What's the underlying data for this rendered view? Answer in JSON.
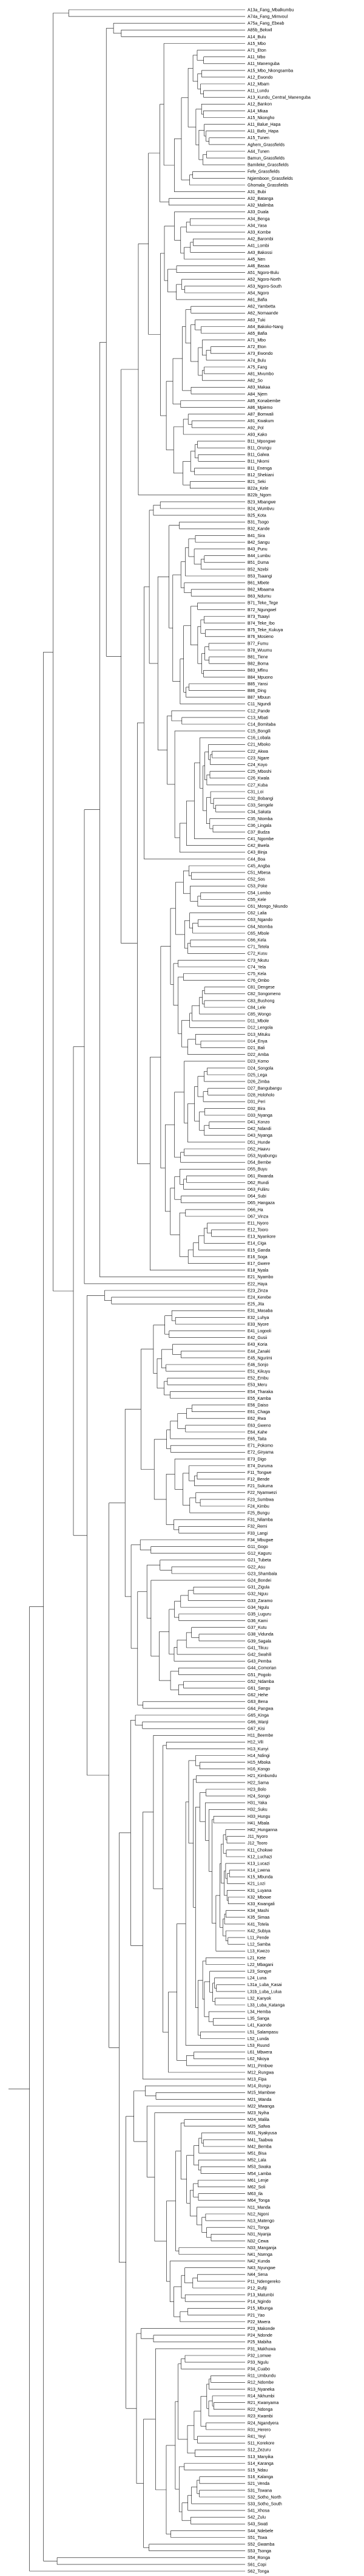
{
  "tree": {
    "tips": [
      "A13a_Fang_Mbalkumbu",
      "A74a_Fang_Mimvoul",
      "A75a_Fang_Ebeab",
      "A85b_Bekwil",
      "A14_Bulu",
      "A15_Mbo",
      "A71_Eton",
      "A11_Mbo",
      "A11_Manenguba",
      "A15_Mbo_Nkongsamba",
      "A12_Ewondo",
      "A12_Mbam",
      "A11_Lundu",
      "A13_Kundu_Central_Manenguba",
      "A12_Bankon",
      "A14_Mkaa",
      "A15_Nkongho",
      "A11_Balue_Hapa",
      "A11_Bafo_Hapa",
      "A15_Tunen",
      "Aghem_Grassfields",
      "A44_Tunen",
      "Bamun_Grassfields",
      "Bamileke_Grassfields",
      "Fefe_Grassfields",
      "Ngiemboon_Grassfields",
      "Ghomala_Grassfields",
      "A31_Bubi",
      "A32_Batanga",
      "A32_Malimba",
      "A33_Duala",
      "A34_Benga",
      "A34_Yasa",
      "A33_Kombe",
      "A42_Barombi",
      "A41_Lombi",
      "A43_Bakossi",
      "A45_Nen",
      "A46_Basaa",
      "A51_Ngoro-Bulu",
      "A52_Ngoro-North",
      "A53_Ngoro-South",
      "A54_Ngoro",
      "A61_Bafia",
      "A62_Yambetta",
      "A62_Nomaande",
      "A63_Tuki",
      "A64_Bakoko-Nang",
      "A65_Bafia",
      "A71_Mbo",
      "A72_Eton",
      "A73_Ewondo",
      "A74_Bulu",
      "A75_Fang",
      "A81_Mvumbo",
      "A82_So",
      "A83_Makaa",
      "A84_Njem",
      "A85_Konabembe",
      "A86_Mpiemo",
      "A87_Bomwali",
      "A91_Kwakum",
      "A92_Pol",
      "A93_Kako",
      "B11_Mpongwe",
      "B11_Orungu",
      "B11_Galwa",
      "B11_Nkomi",
      "B11_Enenga",
      "B12_Shekiani",
      "B21_Seki",
      "B22a_Kele",
      "B22b_Ngom",
      "B23_Mbangwe",
      "B24_Wumbvu",
      "B25_Kota",
      "B31_Tsogo",
      "B32_Kande",
      "B41_Sira",
      "B42_Sangu",
      "B43_Punu",
      "B44_Lumbu",
      "B51_Duma",
      "B52_Nzebi",
      "B53_Tsaangi",
      "B61_Mbete",
      "B62_Mbaama",
      "B63_Ndumu",
      "B71_Teke_Tege",
      "B72_Ngungwel",
      "B73_Tsaayi",
      "B74_Teke_Ibo",
      "B75_Teke_Kukuya",
      "B76_Mosieno",
      "B77_Fumu",
      "B78_Wuumu",
      "B81_Tiene",
      "B82_Boma",
      "B83_Mfinu",
      "B84_Mpuono",
      "B85_Yansi",
      "B86_Ding",
      "B87_Mbuun",
      "C11_Ngundi",
      "C12_Pande",
      "C13_Mbati",
      "C14_Bomitaba",
      "C15_Bongili",
      "C16_Lobala",
      "C21_Mboko",
      "C22_Akwa",
      "C23_Ngare",
      "C24_Koyo",
      "C25_Mboshi",
      "C26_Kwala",
      "C27_Kuba",
      "C31_Loi",
      "C32_Bobangi",
      "C33_Sengele",
      "C34_Sakata",
      "C35_Ntomba",
      "C36_Lingala",
      "C37_Budza",
      "C41_Ngombe",
      "C42_Bwela",
      "C43_Binja",
      "C44_Boa",
      "C45_Angba",
      "C51_Mbesa",
      "C52_Sos",
      "C53_Poke",
      "C54_Lombo",
      "C55_Kele",
      "C61_Mongo_Nkundo",
      "C62_Lalia",
      "C63_Ngando",
      "C64_Ntomba",
      "C65_Mbole",
      "C66_Kela",
      "C71_Tetela",
      "C72_Kusu",
      "C73_Nkutu",
      "C74_Yela",
      "C75_Kela",
      "C76_Ombo",
      "C81_Dengese",
      "C82_Songomeno",
      "C83_Bushong",
      "C84_Lele",
      "C85_Wongo",
      "D11_Mbole",
      "D12_Lengola",
      "D13_Mituku",
      "D14_Enya",
      "D21_Bali",
      "D22_Amba",
      "D23_Komo",
      "D24_Songola",
      "D25_Lega",
      "D26_Zimba",
      "D27_Bangubangu",
      "D28_Holoholo",
      "D31_Peri",
      "D32_Bira",
      "D33_Nyanga",
      "D41_Konzo",
      "D42_Ndandi",
      "D43_Nyanga",
      "D51_Hunde",
      "D52_Haavu",
      "D53_Nyabungu",
      "D54_Bembe",
      "D55_Buyu",
      "D61_Rwanda",
      "D62_Rundi",
      "D63_Fuliiru",
      "D64_Subi",
      "D65_Hangaza",
      "D66_Ha",
      "D67_Vinza",
      "E11_Nyoro",
      "E12_Tooro",
      "E13_Nyankore",
      "E14_Ciga",
      "E15_Ganda",
      "E16_Soga",
      "E17_Gwere",
      "E18_Nyala",
      "E21_Nyambo",
      "E22_Haya",
      "E23_Zinza",
      "E24_Kerebe",
      "E25_Jita",
      "E31_Masaba",
      "E32_Luhya",
      "E33_Nyore",
      "E41_Logooli",
      "E42_Gusii",
      "E43_Koria",
      "E44_Zanaki",
      "E45_Ngurimi",
      "E46_Sonjo",
      "E51_Kikuyu",
      "E52_Embu",
      "E53_Meru",
      "E54_Tharaka",
      "E55_Kamba",
      "E56_Daiso",
      "E61_Chaga",
      "E62_Rwa",
      "E63_Gweno",
      "E64_Kahe",
      "E65_Taita",
      "E71_Pokomo",
      "E72_Giryama",
      "E73_Digo",
      "E74_Duruma",
      "F11_Tongwe",
      "F12_Bende",
      "F21_Sukuma",
      "F22_Nyamwezi",
      "F23_Sumbwa",
      "F24_Kimbu",
      "F25_Bungu",
      "F31_Nilamba",
      "F32_Remi",
      "F33_Langi",
      "F34_Mbugwe",
      "G11_Gogo",
      "G12_Kaguru",
      "G21_Tubeta",
      "G22_Asu",
      "G23_Shambala",
      "G24_Bondei",
      "G31_Zigula",
      "G32_Nguu",
      "G33_Zaramo",
      "G34_Ngulu",
      "G35_Luguru",
      "G36_Kami",
      "G37_Kutu",
      "G38_Vidunda",
      "G39_Sagala",
      "G41_Tikuu",
      "G42_Swahili",
      "G43_Pemba",
      "G44_Comorian",
      "G51_Pogolo",
      "G52_Ndamba",
      "G61_Sangu",
      "G62_Hehe",
      "G63_Bena",
      "G64_Pangwa",
      "G65_Kinga",
      "G66_Wanji",
      "G67_Kisi",
      "H11_Beembe",
      "H12_Vili",
      "H13_Kunyi",
      "H14_Ndingi",
      "H15_Mboka",
      "H16_Kongo",
      "H21_Kimbundu",
      "H22_Sama",
      "H23_Bolo",
      "H24_Songo",
      "H31_Yaka",
      "H32_Suku",
      "H33_Hungu",
      "H41_Mbala",
      "H42_Hunganna",
      "J11_Nyoro",
      "J12_Tooro",
      "K11_Chokwe",
      "K12_Luchazi",
      "K13_Lucazi",
      "K14_Lwena",
      "K15_Mbunda",
      "K21_Lozi",
      "K31_Luyana",
      "K32_Mbowe",
      "K33_Kwangali",
      "K34_Mashi",
      "K35_Simaa",
      "K41_Totela",
      "K42_Subiya",
      "L11_Pende",
      "L12_Samba",
      "L13_Kwezo",
      "L21_Kete",
      "L22_Mbagani",
      "L23_Songye",
      "L24_Luna",
      "L31a_Luba_Kasai",
      "L31b_Luba_Lulua",
      "L32_Kanyok",
      "L33_Luba_Katanga",
      "L34_Hemba",
      "L35_Sanga",
      "L41_Kaonde",
      "L51_Salampasu",
      "L52_Lunda",
      "L53_Ruund",
      "L61_Mbwera",
      "L62_Nkoya",
      "M11_Pimbwe",
      "M12_Rungwa",
      "M13_Fipa",
      "M14_Rungu",
      "M15_Mambwe",
      "M21_Wanda",
      "M22_Mwanga",
      "M23_Nyiha",
      "M24_Malila",
      "M25_Safwa",
      "M31_Nyakyusa",
      "M41_Taabwa",
      "M42_Bemba",
      "M51_Bisa",
      "M52_Lala",
      "M53_Swaka",
      "M54_Lamba",
      "M61_Lenje",
      "M62_Soli",
      "M63_Ila",
      "M64_Tonga",
      "N11_Manda",
      "N12_Ngoni",
      "N13_Matengo",
      "N21_Tonga",
      "N31_Nyanja",
      "N32_Cewa",
      "N33_Manganja",
      "N41_Nsenga",
      "N42_Kunda",
      "N43_Nyungwe",
      "N44_Sena",
      "P11_Ndengereko",
      "P12_Rufiji",
      "P13_Matumbi",
      "P14_Ngindo",
      "P15_Mbunga",
      "P21_Yao",
      "P22_Mwera",
      "P23_Makonde",
      "P24_Ndonde",
      "P25_Mabiha",
      "P31_Makhuwa",
      "P32_Lomwe",
      "P33_Ngulu",
      "P34_Cuabo",
      "R11_Umbundu",
      "R12_Ndombe",
      "R13_Nyaneka",
      "R14_Nkhumbi",
      "R21_Kwanyama",
      "R22_Ndonga",
      "R23_Kwambi",
      "R24_Ngandyera",
      "R31_Herero",
      "R41_Yeyi",
      "S11_Korekore",
      "S12_Zezuru",
      "S13_Manyika",
      "S14_Karanga",
      "S15_Ndau",
      "S16_Kalanga",
      "S21_Venda",
      "S31_Tswana",
      "S32_Sotho_North",
      "S33_Sotho_South",
      "S41_Xhosa",
      "S42_Zulu",
      "S43_Swati",
      "S44_Ndebele",
      "S51_Tswa",
      "S52_Gwamba",
      "S53_Tsonga",
      "S54_Ronga",
      "S61_Copi",
      "S62_Tonga"
    ]
  }
}
